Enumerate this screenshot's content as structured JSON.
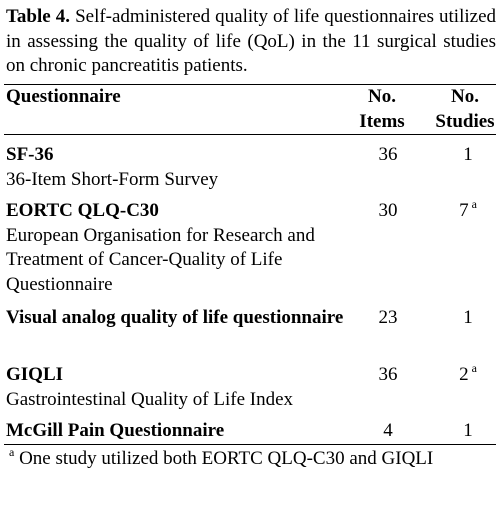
{
  "caption": {
    "label": "Table 4.",
    "text": "Self-administered quality of life questionnaires utilized in assessing the quality of life (QoL) in the 11 surgical studies on chronic pancreatitis patients."
  },
  "table": {
    "headers": [
      [
        "Questionnaire"
      ],
      [
        "No.",
        "Items"
      ],
      [
        "No.",
        "Studies"
      ]
    ],
    "rows": [
      {
        "name": "SF-36",
        "description": "36-Item Short-Form Survey",
        "items": 36,
        "studies": 1
      },
      {
        "name": "EORTC QLQ-C30",
        "description": "European Organisation for Research and Treatment of Cancer-Quality of Life Questionnaire",
        "items": 30,
        "studies": 7,
        "note": "a"
      },
      {
        "name": "Visual analog quality of life questionnaire",
        "items": 23,
        "studies": 1
      },
      {
        "name": "GIQLI",
        "description": "Gastrointestinal Quality of Life Index",
        "items": 36,
        "studies": 2,
        "note": "a"
      },
      {
        "name": "McGill Pain Questionnaire",
        "items": 4,
        "studies": 1
      }
    ]
  },
  "footnote": {
    "marker": "a",
    "text": "One study utilized both EORTC QLQ-C30 and GIQLI"
  }
}
